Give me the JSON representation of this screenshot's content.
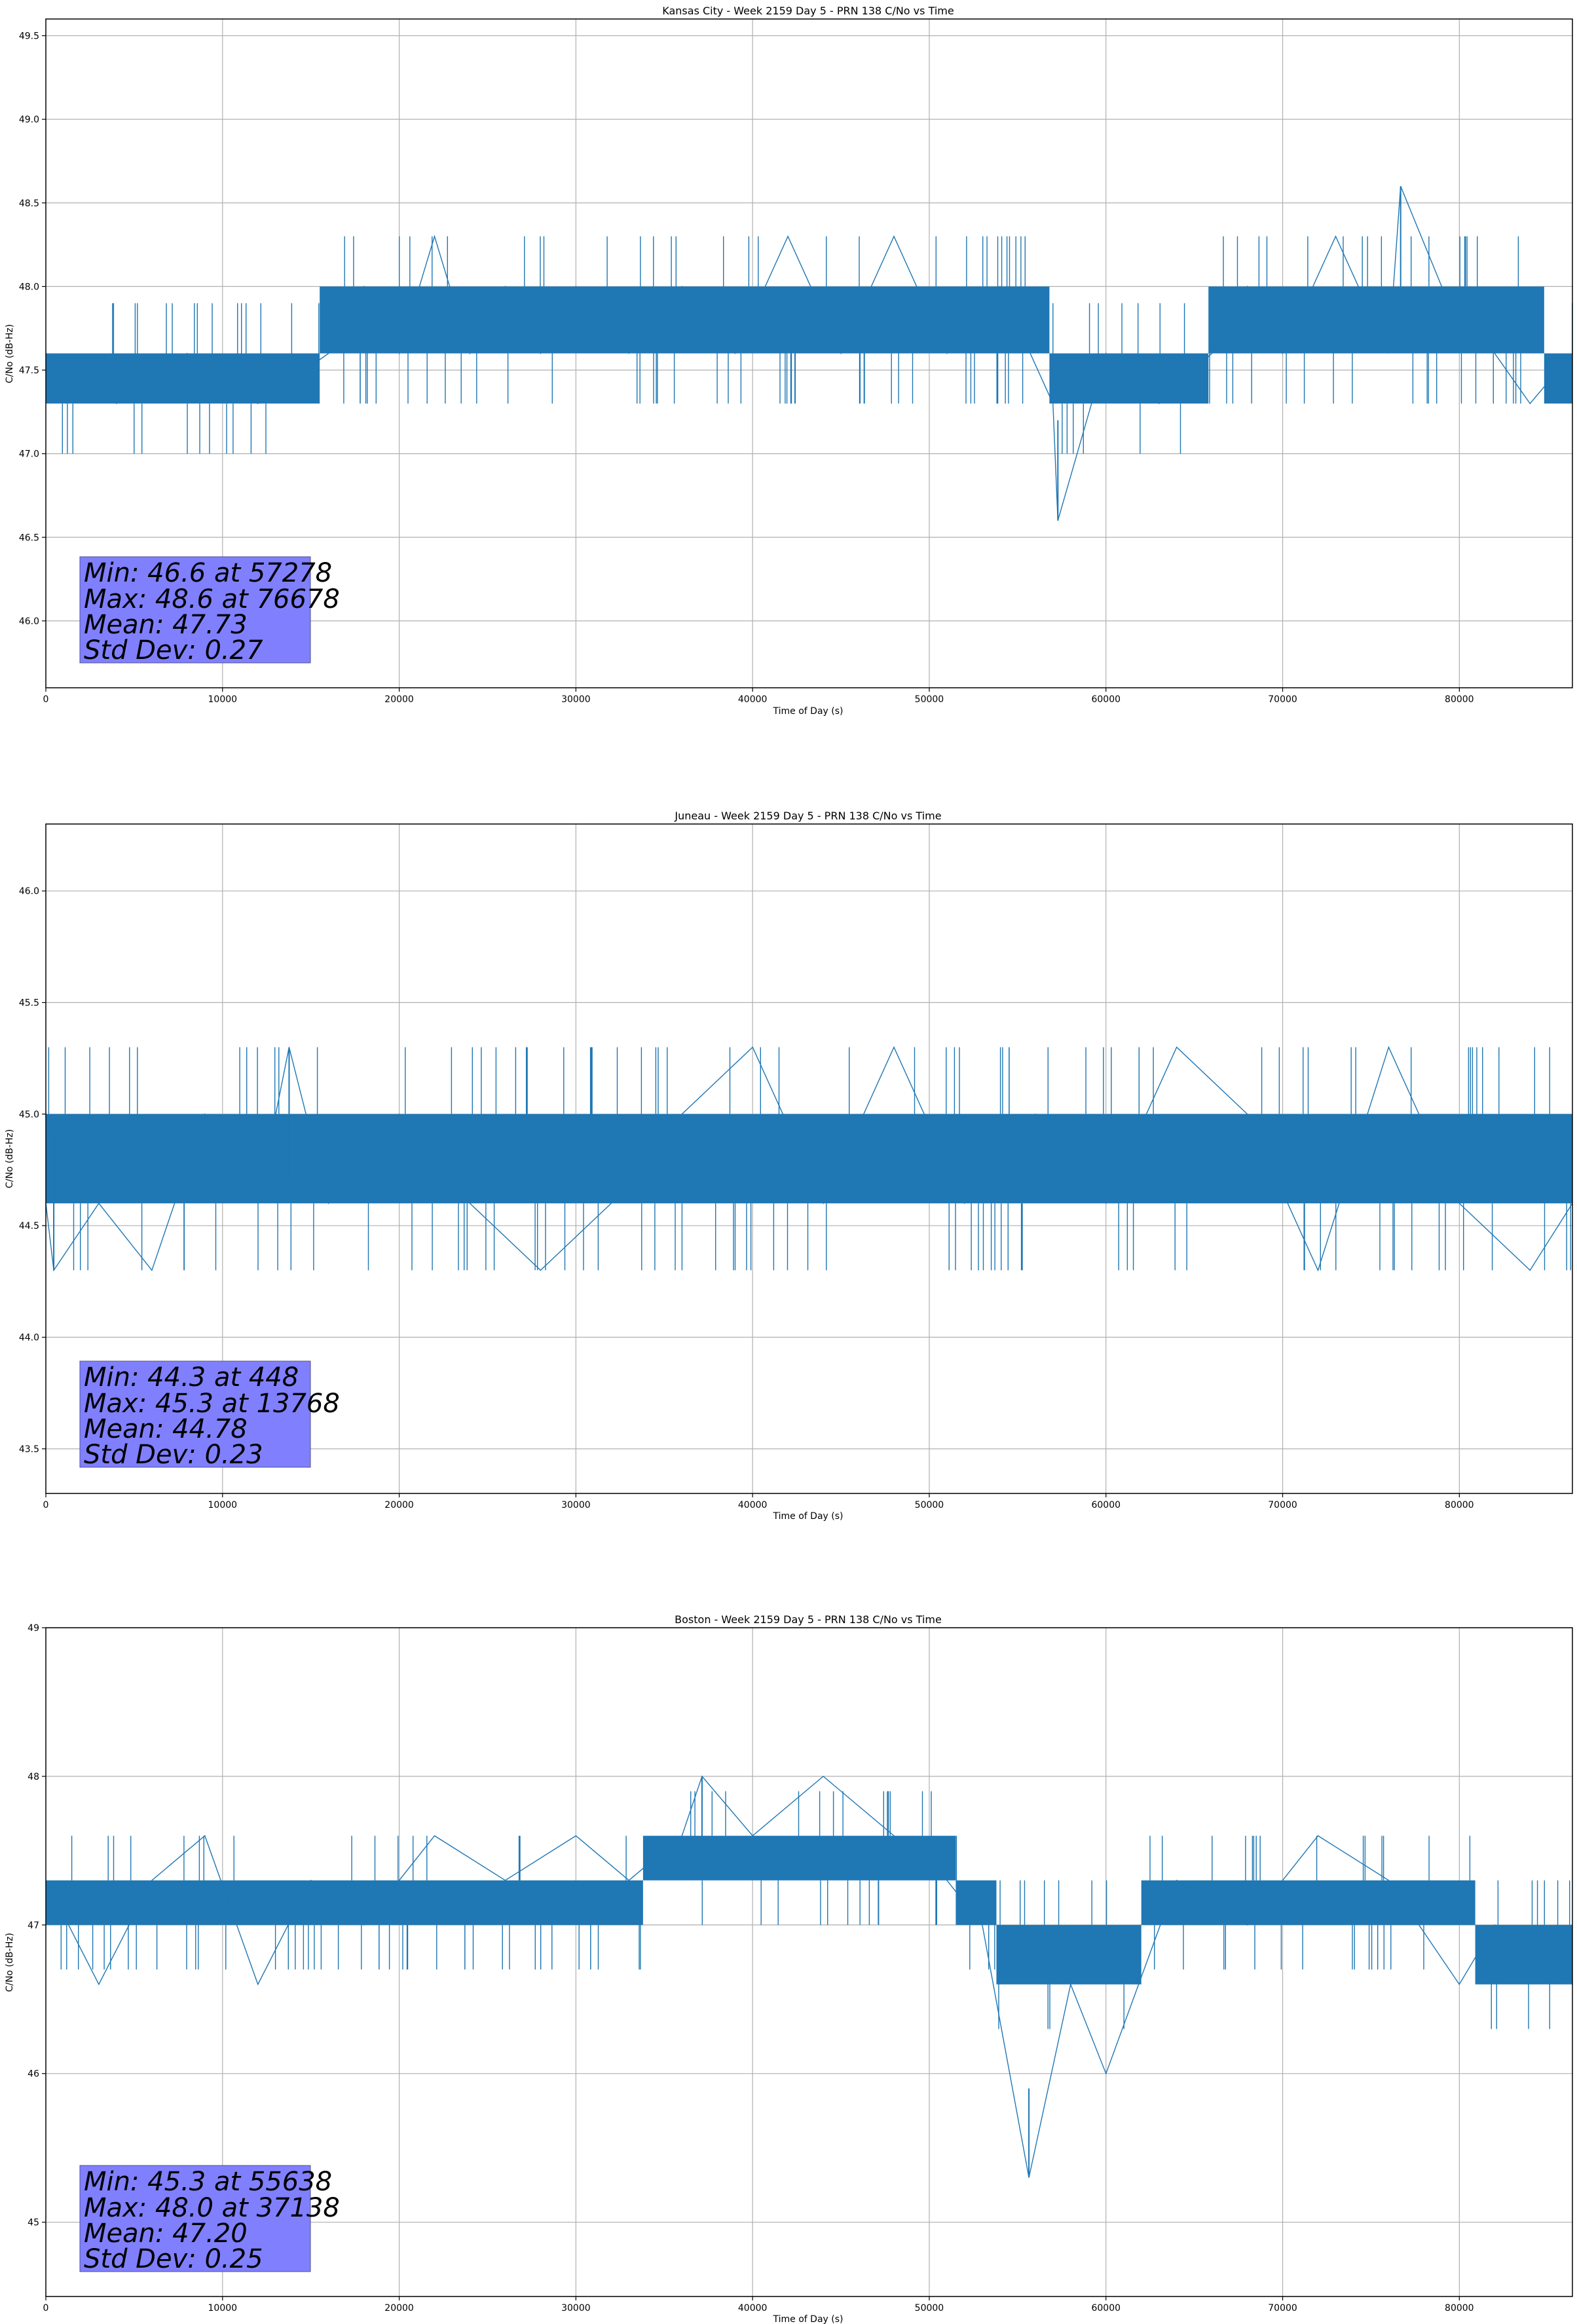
{
  "chart_data": [
    {
      "type": "line",
      "title": "Kansas City - Week 2159 Day 5 - PRN 138 C/No vs Time",
      "xlabel": "Time of Day (s)",
      "ylabel": "C/No (dB-Hz)",
      "xlim": [
        0,
        86400
      ],
      "ylim": [
        45.6,
        49.6
      ],
      "xticks": [
        "0",
        "10000",
        "20000",
        "30000",
        "40000",
        "50000",
        "60000",
        "70000",
        "80000"
      ],
      "yticks": [
        "46.0",
        "46.5",
        "47.0",
        "47.5",
        "48.0",
        "48.5",
        "49.0",
        "49.5"
      ],
      "grid": true,
      "color": "#1f77b4",
      "series": [
        {
          "x": [
            0,
            4000,
            8000,
            12000,
            16000,
            18000,
            20000,
            22000,
            24000,
            26000,
            28000,
            30000,
            33000,
            36000,
            39000,
            42000,
            45000,
            48000,
            51000,
            54000,
            57000,
            57278,
            60000,
            63000,
            66000,
            68000,
            70000,
            73000,
            76000,
            76678,
            79000,
            82000,
            84000,
            86400
          ],
          "y": [
            47.6,
            47.3,
            47.6,
            47.3,
            47.6,
            48.0,
            47.6,
            48.3,
            47.6,
            48.0,
            47.6,
            48.0,
            47.6,
            48.0,
            47.6,
            48.3,
            47.6,
            48.3,
            47.6,
            48.0,
            47.3,
            46.6,
            47.6,
            47.3,
            47.6,
            48.0,
            47.6,
            48.3,
            47.6,
            48.6,
            48.0,
            47.6,
            47.3,
            47.6
          ],
          "band": [
            [
              0,
              15500,
              47.3,
              47.6
            ],
            [
              15500,
              56800,
              47.6,
              48.0
            ],
            [
              56800,
              65800,
              47.3,
              47.6
            ],
            [
              65800,
              84800,
              47.6,
              48.0
            ],
            [
              84800,
              86400,
              47.3,
              47.6
            ]
          ],
          "extremes": [
            [
              57278,
              46.6
            ],
            [
              76678,
              48.6
            ]
          ]
        }
      ],
      "stats": {
        "min": "Min: 46.6 at 57278",
        "max": "Max: 48.6 at 76678",
        "mean": "Mean: 47.73",
        "std": "Std Dev: 0.27"
      }
    },
    {
      "type": "line",
      "title": "Juneau - Week 2159 Day 5 - PRN 138 C/No vs Time",
      "xlabel": "Time of Day (s)",
      "ylabel": "C/No (dB-Hz)",
      "xlim": [
        0,
        86400
      ],
      "ylim": [
        43.3,
        46.3
      ],
      "xticks": [
        "0",
        "10000",
        "20000",
        "30000",
        "40000",
        "50000",
        "60000",
        "70000",
        "80000"
      ],
      "yticks": [
        "43.5",
        "44.0",
        "44.5",
        "45.0",
        "45.5",
        "46.0"
      ],
      "grid": true,
      "color": "#1f77b4",
      "series": [
        {
          "x": [
            0,
            448,
            3000,
            6000,
            9000,
            12000,
            13768,
            16000,
            20000,
            24000,
            28000,
            32000,
            36000,
            40000,
            44000,
            48000,
            52000,
            56000,
            60000,
            64000,
            68000,
            72000,
            76000,
            80000,
            84000,
            86400
          ],
          "y": [
            44.6,
            44.3,
            44.6,
            44.3,
            45.0,
            44.6,
            45.3,
            44.6,
            45.0,
            44.6,
            44.3,
            44.6,
            45.0,
            45.3,
            44.6,
            45.3,
            44.6,
            45.0,
            44.6,
            45.3,
            45.0,
            44.3,
            45.3,
            44.6,
            44.3,
            44.6
          ],
          "band": [
            [
              0,
              4300,
              44.6,
              45.0
            ],
            [
              4300,
              86400,
              44.6,
              45.0
            ]
          ],
          "extremes": [
            [
              448,
              44.3
            ],
            [
              13768,
              45.3
            ]
          ]
        }
      ],
      "stats": {
        "min": "Min: 44.3 at 448",
        "max": "Max: 45.3 at 13768",
        "mean": "Mean: 44.78",
        "std": "Std Dev: 0.23"
      }
    },
    {
      "type": "line",
      "title": "Boston - Week 2159 Day 5 - PRN 138 C/No vs Time",
      "xlabel": "Time of Day (s)",
      "ylabel": "C/No (dB-Hz)",
      "xlim": [
        0,
        86400
      ],
      "ylim": [
        44.5,
        49.0
      ],
      "xticks": [
        "0",
        "10000",
        "20000",
        "30000",
        "40000",
        "50000",
        "60000",
        "70000",
        "80000"
      ],
      "yticks": [
        "45",
        "46",
        "47",
        "48",
        "49"
      ],
      "grid": true,
      "color": "#1f77b4",
      "series": [
        {
          "x": [
            0,
            3000,
            6000,
            9000,
            12000,
            15000,
            18000,
            22000,
            26000,
            30000,
            33000,
            36000,
            37138,
            40000,
            44000,
            48000,
            51000,
            53000,
            55638,
            58000,
            60000,
            64000,
            68000,
            72000,
            76000,
            80000,
            82000,
            86400
          ],
          "y": [
            47.3,
            46.6,
            47.3,
            47.6,
            46.6,
            47.3,
            47.0,
            47.6,
            47.3,
            47.6,
            47.3,
            47.6,
            48.0,
            47.6,
            48.0,
            47.6,
            47.3,
            47.0,
            45.3,
            46.6,
            46.0,
            47.3,
            47.0,
            47.6,
            47.3,
            46.6,
            47.0,
            46.6
          ],
          "band": [
            [
              0,
              33800,
              47.0,
              47.3
            ],
            [
              33800,
              51500,
              47.3,
              47.6
            ],
            [
              51500,
              53800,
              47.0,
              47.3
            ],
            [
              53800,
              62000,
              46.6,
              47.0
            ],
            [
              62000,
              80900,
              47.0,
              47.3
            ],
            [
              80900,
              86400,
              46.6,
              47.0
            ]
          ],
          "extremes": [
            [
              55638,
              45.3
            ],
            [
              37138,
              48.0
            ]
          ]
        }
      ],
      "stats": {
        "min": "Min: 45.3 at 55638",
        "max": "Max: 48.0 at 37138",
        "mean": "Mean: 47.20",
        "std": "Std Dev: 0.25"
      }
    }
  ]
}
